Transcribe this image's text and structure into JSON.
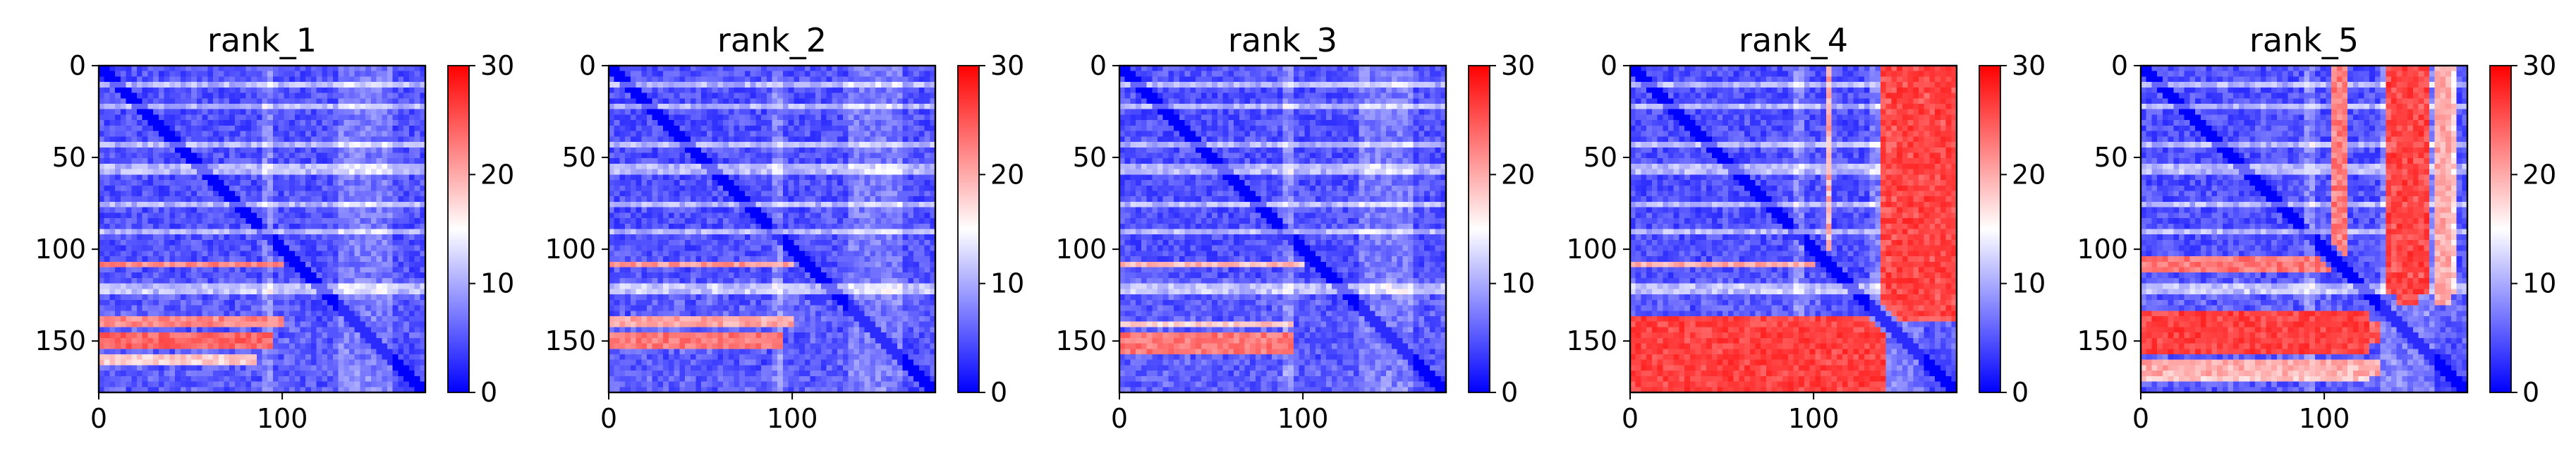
{
  "chart_data": [
    {
      "type": "heatmap",
      "title": "rank_1",
      "x_ticks": [
        "0",
        "100"
      ],
      "x_tick_values": [
        0,
        100
      ],
      "y_ticks": [
        "0",
        "50",
        "100",
        "150"
      ],
      "y_tick_values": [
        0,
        50,
        100,
        150
      ],
      "xlim": [
        0,
        178
      ],
      "ylim": [
        178,
        0
      ],
      "colorbar": {
        "min": 0,
        "max": 30,
        "ticks": [
          "0",
          "10",
          "20",
          "30"
        ],
        "tick_values": [
          0,
          10,
          20,
          30
        ],
        "colormap": "bwr"
      },
      "bands": [
        {
          "rows": [
            107,
            111
          ],
          "cols": [
            0,
            105
          ],
          "value": 24
        },
        {
          "rows": [
            136,
            142
          ],
          "cols": [
            0,
            100
          ],
          "value": 24
        },
        {
          "rows": [
            145,
            155
          ],
          "cols": [
            0,
            95
          ],
          "value": 26
        },
        {
          "rows": [
            158,
            162
          ],
          "cols": [
            0,
            85
          ],
          "value": 20
        }
      ]
    },
    {
      "type": "heatmap",
      "title": "rank_2",
      "x_ticks": [
        "0",
        "100"
      ],
      "x_tick_values": [
        0,
        100
      ],
      "y_ticks": [
        "0",
        "50",
        "100",
        "150"
      ],
      "y_tick_values": [
        0,
        50,
        100,
        150
      ],
      "xlim": [
        0,
        178
      ],
      "ylim": [
        178,
        0
      ],
      "colorbar": {
        "min": 0,
        "max": 30,
        "ticks": [
          "0",
          "10",
          "20",
          "30"
        ],
        "tick_values": [
          0,
          10,
          20,
          30
        ],
        "colormap": "bwr"
      },
      "bands": [
        {
          "rows": [
            107,
            111
          ],
          "cols": [
            0,
            105
          ],
          "value": 23
        },
        {
          "rows": [
            136,
            142
          ],
          "cols": [
            0,
            100
          ],
          "value": 22
        },
        {
          "rows": [
            145,
            155
          ],
          "cols": [
            0,
            95
          ],
          "value": 25
        }
      ]
    },
    {
      "type": "heatmap",
      "title": "rank_3",
      "x_ticks": [
        "0",
        "100"
      ],
      "x_tick_values": [
        0,
        100
      ],
      "y_ticks": [
        "0",
        "50",
        "100",
        "150"
      ],
      "y_tick_values": [
        0,
        50,
        100,
        150
      ],
      "xlim": [
        0,
        178
      ],
      "ylim": [
        178,
        0
      ],
      "colorbar": {
        "min": 0,
        "max": 30,
        "ticks": [
          "0",
          "10",
          "20",
          "30"
        ],
        "tick_values": [
          0,
          10,
          20,
          30
        ],
        "colormap": "bwr"
      },
      "bands": [
        {
          "rows": [
            107,
            111
          ],
          "cols": [
            0,
            105
          ],
          "value": 21
        },
        {
          "rows": [
            138,
            142
          ],
          "cols": [
            0,
            95
          ],
          "value": 20
        },
        {
          "rows": [
            145,
            157
          ],
          "cols": [
            0,
            95
          ],
          "value": 25
        }
      ]
    },
    {
      "type": "heatmap",
      "title": "rank_4",
      "x_ticks": [
        "0",
        "100"
      ],
      "x_tick_values": [
        0,
        100
      ],
      "y_ticks": [
        "0",
        "50",
        "100",
        "150"
      ],
      "y_tick_values": [
        0,
        50,
        100,
        150
      ],
      "xlim": [
        0,
        178
      ],
      "ylim": [
        178,
        0
      ],
      "colorbar": {
        "min": 0,
        "max": 30,
        "ticks": [
          "0",
          "10",
          "20",
          "30"
        ],
        "tick_values": [
          0,
          10,
          20,
          30
        ],
        "colormap": "bwr"
      },
      "bands": [
        {
          "rows": [
            107,
            111
          ],
          "cols": [
            0,
            105
          ],
          "value": 22
        },
        {
          "rows": [
            135,
            178
          ],
          "cols": [
            0,
            140
          ],
          "value": 28
        },
        {
          "rows": [
            0,
            135
          ],
          "cols": [
            145,
            178
          ],
          "value": 27
        }
      ]
    },
    {
      "type": "heatmap",
      "title": "rank_5",
      "x_ticks": [
        "0",
        "100"
      ],
      "x_tick_values": [
        0,
        100
      ],
      "y_ticks": [
        "0",
        "50",
        "100",
        "150"
      ],
      "y_tick_values": [
        0,
        50,
        100,
        150
      ],
      "xlim": [
        0,
        178
      ],
      "ylim": [
        178,
        0
      ],
      "colorbar": {
        "min": 0,
        "max": 30,
        "ticks": [
          "0",
          "10",
          "20",
          "30"
        ],
        "tick_values": [
          0,
          10,
          20,
          30
        ],
        "colormap": "bwr"
      },
      "bands": [
        {
          "rows": [
            105,
            113
          ],
          "cols": [
            0,
            110
          ],
          "value": 25
        },
        {
          "rows": [
            133,
            157
          ],
          "cols": [
            0,
            125
          ],
          "value": 28
        },
        {
          "rows": [
            160,
            172
          ],
          "cols": [
            0,
            125
          ],
          "value": 20
        },
        {
          "rows": [
            0,
            130
          ],
          "cols": [
            140,
            150
          ],
          "value": 27
        },
        {
          "rows": [
            0,
            130
          ],
          "cols": [
            160,
            170
          ],
          "value": 22
        }
      ]
    }
  ]
}
